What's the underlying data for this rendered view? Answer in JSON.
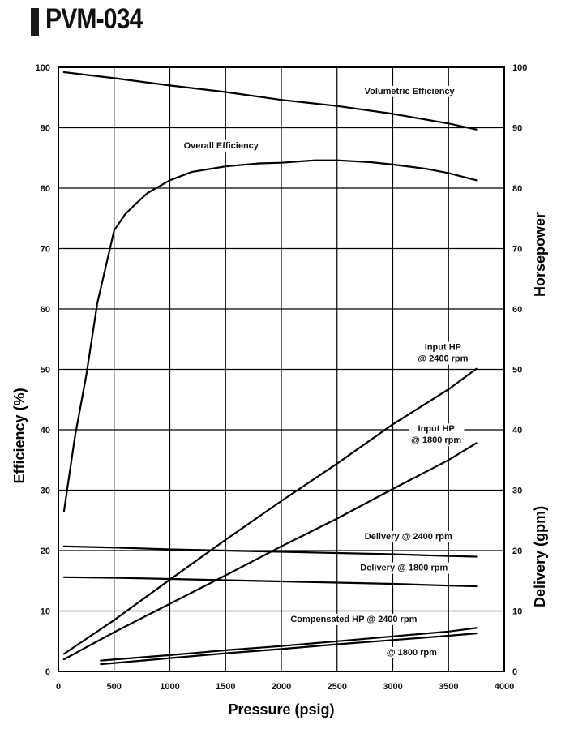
{
  "header": {
    "title": "PVM-034"
  },
  "chart_data": {
    "type": "line",
    "xlabel": "Pressure (psig)",
    "ylabel_left": "Efficiency (%)",
    "ylabel_right_top": "Horsepower",
    "ylabel_right_bottom": "Delivery (gpm)",
    "xlim": [
      0,
      4000
    ],
    "ylim": [
      0,
      100
    ],
    "xticks": [
      0,
      500,
      1000,
      1500,
      2000,
      2500,
      3000,
      3500,
      4000
    ],
    "yticks_left": [
      0,
      10,
      20,
      30,
      40,
      50,
      60,
      70,
      80,
      90,
      100
    ],
    "yticks_right": [
      0,
      10,
      20,
      30,
      40,
      50,
      60,
      70,
      80,
      90,
      100
    ],
    "grid": true,
    "series": [
      {
        "name": "Volumetric Efficiency",
        "label_lines": [
          "Volumetric Efficiency"
        ],
        "label_pos": [
          3150,
          95.6
        ],
        "label_anchor": "middle",
        "x": [
          50,
          500,
          1000,
          1500,
          2000,
          2500,
          3000,
          3500,
          3750
        ],
        "y": [
          99.2,
          98.2,
          97.0,
          95.9,
          94.6,
          93.6,
          92.3,
          90.7,
          89.7
        ]
      },
      {
        "name": "Overall Efficiency",
        "label_lines": [
          "Overall Efficiency"
        ],
        "label_pos": [
          1460,
          86.6
        ],
        "label_anchor": "middle",
        "x": [
          50,
          150,
          250,
          350,
          450,
          500,
          600,
          700,
          800,
          1000,
          1200,
          1500,
          1800,
          2000,
          2300,
          2500,
          2800,
          3000,
          3300,
          3500,
          3750
        ],
        "y": [
          26.5,
          39,
          49,
          61,
          69,
          73,
          75.7,
          77.5,
          79.2,
          81.3,
          82.7,
          83.6,
          84.1,
          84.2,
          84.6,
          84.6,
          84.3,
          83.9,
          83.2,
          82.5,
          81.3
        ]
      },
      {
        "name": "Input HP @ 2400 rpm",
        "label_lines": [
          "Input HP",
          "@ 2400 rpm"
        ],
        "label_pos": [
          3450,
          53.2
        ],
        "label_anchor": "middle",
        "x": [
          50,
          500,
          1000,
          1500,
          2000,
          2500,
          3000,
          3500,
          3750
        ],
        "y": [
          2.9,
          8.5,
          15.2,
          21.8,
          28.2,
          34.4,
          40.9,
          46.7,
          50.1
        ]
      },
      {
        "name": "Input HP @ 1800 rpm",
        "label_lines": [
          "Input HP",
          "@ 1800 rpm"
        ],
        "label_pos": [
          3390,
          39.7
        ],
        "label_anchor": "middle",
        "x": [
          50,
          500,
          1000,
          1500,
          2000,
          2500,
          3000,
          3500,
          3750
        ],
        "y": [
          2.0,
          6.5,
          11.2,
          15.9,
          20.7,
          25.3,
          30.2,
          35.0,
          37.8
        ]
      },
      {
        "name": "Delivery @ 2400 rpm",
        "label_lines": [
          "Delivery @ 2400 rpm"
        ],
        "label_pos": [
          3140,
          21.9
        ],
        "label_anchor": "middle",
        "x": [
          50,
          500,
          1000,
          1500,
          2000,
          2500,
          3000,
          3500,
          3750
        ],
        "y": [
          20.7,
          20.5,
          20.2,
          20.0,
          19.8,
          19.6,
          19.4,
          19.1,
          19.0
        ]
      },
      {
        "name": "Delivery @ 1800 rpm",
        "label_lines": [
          "Delivery @ 1800 rpm"
        ],
        "label_pos": [
          3100,
          16.7
        ],
        "label_anchor": "middle",
        "x": [
          50,
          500,
          1000,
          1500,
          2000,
          2500,
          3000,
          3500,
          3750
        ],
        "y": [
          15.6,
          15.5,
          15.3,
          15.1,
          14.9,
          14.7,
          14.5,
          14.2,
          14.1
        ]
      },
      {
        "name": "Compensated HP @ 2400 rpm",
        "label_lines": [
          "Compensated HP @ 2400 rpm"
        ],
        "label_pos": [
          2650,
          8.2
        ],
        "label_anchor": "middle",
        "x": [
          380,
          1000,
          1500,
          2000,
          2500,
          3000,
          3500,
          3750
        ],
        "y": [
          1.8,
          2.7,
          3.5,
          4.2,
          5.0,
          5.8,
          6.6,
          7.2
        ]
      },
      {
        "name": "Compensated HP @ 1800 rpm",
        "label_lines": [
          "@ 1800 rpm"
        ],
        "label_pos": [
          3170,
          2.7
        ],
        "label_anchor": "middle",
        "x": [
          380,
          1000,
          1500,
          2000,
          2500,
          3000,
          3500,
          3750
        ],
        "y": [
          1.2,
          2.2,
          3.0,
          3.7,
          4.5,
          5.2,
          5.9,
          6.3
        ]
      }
    ]
  }
}
